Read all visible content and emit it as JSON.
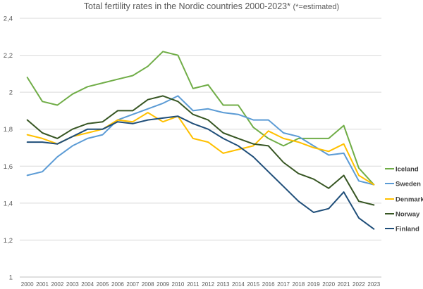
{
  "chart_data": {
    "type": "line",
    "title": "Total fertility rates in the Nordic countries 2000-2023*",
    "subtitle": "(*=estimated)",
    "xlabel": "",
    "ylabel": "",
    "x": [
      "2000",
      "2001",
      "2002",
      "2003",
      "2004",
      "2005",
      "2006",
      "2007",
      "2008",
      "2009",
      "2010",
      "2011",
      "2012",
      "2013",
      "2014",
      "2015",
      "2016",
      "2017",
      "2018",
      "2019",
      "2020",
      "2021",
      "2022",
      "2023"
    ],
    "ylim": [
      1,
      2.4
    ],
    "yticks": [
      "1",
      "1,2",
      "1,4",
      "1,6",
      "1,8",
      "2",
      "2,2",
      "2,4"
    ],
    "grid": true,
    "legend_position": "right",
    "series": [
      {
        "name": "Iceland",
        "color": "#70AD47",
        "values": [
          2.08,
          1.95,
          1.93,
          1.99,
          2.03,
          2.05,
          2.07,
          2.09,
          2.14,
          2.22,
          2.2,
          2.02,
          2.04,
          1.93,
          1.93,
          1.81,
          1.75,
          1.71,
          1.75,
          1.75,
          1.75,
          1.82,
          1.59,
          1.5
        ]
      },
      {
        "name": "Sweden",
        "color": "#5B9BD5",
        "values": [
          1.55,
          1.57,
          1.65,
          1.71,
          1.75,
          1.77,
          1.85,
          1.88,
          1.91,
          1.94,
          1.98,
          1.9,
          1.91,
          1.89,
          1.88,
          1.85,
          1.85,
          1.78,
          1.76,
          1.71,
          1.66,
          1.67,
          1.52,
          1.5
        ]
      },
      {
        "name": "Denmark",
        "color": "#FFC000",
        "values": [
          1.77,
          1.75,
          1.72,
          1.76,
          1.78,
          1.8,
          1.85,
          1.84,
          1.89,
          1.84,
          1.87,
          1.75,
          1.73,
          1.67,
          1.69,
          1.71,
          1.79,
          1.75,
          1.73,
          1.7,
          1.68,
          1.72,
          1.55,
          1.5
        ]
      },
      {
        "name": "Norway",
        "color": "#375623",
        "values": [
          1.85,
          1.78,
          1.75,
          1.8,
          1.83,
          1.84,
          1.9,
          1.9,
          1.96,
          1.98,
          1.95,
          1.88,
          1.85,
          1.78,
          1.75,
          1.72,
          1.71,
          1.62,
          1.56,
          1.53,
          1.48,
          1.55,
          1.41,
          1.39
        ]
      },
      {
        "name": "Finland",
        "color": "#1F4E79",
        "values": [
          1.73,
          1.73,
          1.72,
          1.76,
          1.8,
          1.8,
          1.84,
          1.83,
          1.85,
          1.86,
          1.87,
          1.83,
          1.8,
          1.75,
          1.71,
          1.65,
          1.57,
          1.49,
          1.41,
          1.35,
          1.37,
          1.46,
          1.32,
          1.26
        ]
      }
    ]
  }
}
